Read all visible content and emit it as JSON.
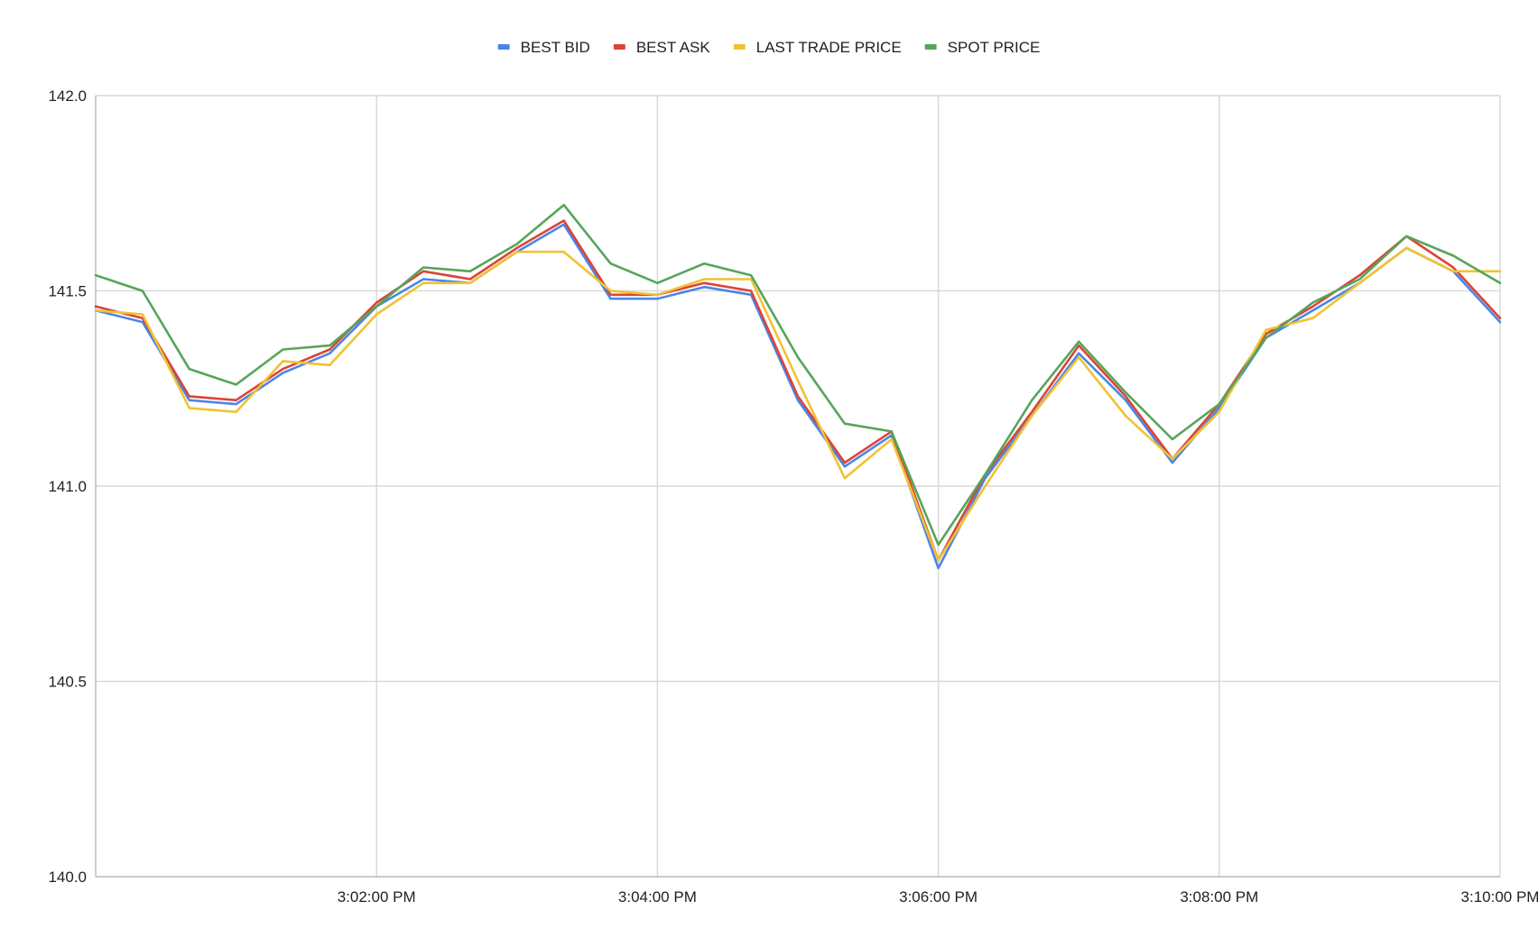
{
  "chart_data": {
    "type": "line",
    "title": "",
    "xlabel": "",
    "ylabel": "",
    "ylim": [
      140.0,
      142.0
    ],
    "yticks": [
      "140.0",
      "140.5",
      "141.0",
      "141.5",
      "142.0"
    ],
    "xlim": [
      "3:00:00 PM",
      "3:10:00 PM"
    ],
    "xticks": [
      "3:02:00 PM",
      "3:04:00 PM",
      "3:06:00 PM",
      "3:08:00 PM",
      "3:10:00 PM"
    ],
    "grid": true,
    "legend_position": "top",
    "x": [
      "3:00:00 PM",
      "3:00:20 PM",
      "3:00:40 PM",
      "3:01:00 PM",
      "3:01:20 PM",
      "3:01:40 PM",
      "3:02:00 PM",
      "3:02:20 PM",
      "3:02:40 PM",
      "3:03:00 PM",
      "3:03:20 PM",
      "3:03:40 PM",
      "3:04:00 PM",
      "3:04:20 PM",
      "3:04:40 PM",
      "3:05:00 PM",
      "3:05:20 PM",
      "3:05:40 PM",
      "3:06:00 PM",
      "3:06:20 PM",
      "3:06:40 PM",
      "3:07:00 PM",
      "3:07:20 PM",
      "3:07:40 PM",
      "3:08:00 PM",
      "3:08:20 PM",
      "3:08:40 PM",
      "3:09:00 PM",
      "3:09:20 PM",
      "3:09:40 PM",
      "3:10:00 PM"
    ],
    "series": [
      {
        "name": "BEST BID",
        "color": "#4a86e8",
        "values": [
          141.45,
          141.42,
          141.22,
          141.21,
          141.29,
          141.34,
          141.46,
          141.53,
          141.52,
          141.6,
          141.67,
          141.48,
          141.48,
          141.51,
          141.49,
          141.22,
          141.05,
          141.13,
          140.79,
          141.02,
          141.18,
          141.34,
          141.22,
          141.06,
          141.2,
          141.38,
          141.45,
          141.52,
          141.61,
          141.55,
          141.42
        ]
      },
      {
        "name": "BEST ASK",
        "color": "#db4437",
        "values": [
          141.46,
          141.43,
          141.23,
          141.22,
          141.3,
          141.35,
          141.47,
          141.55,
          141.53,
          141.61,
          141.68,
          141.49,
          141.49,
          141.52,
          141.5,
          141.23,
          141.06,
          141.14,
          140.81,
          141.03,
          141.19,
          141.36,
          141.23,
          141.07,
          141.21,
          141.39,
          141.46,
          141.54,
          141.64,
          141.56,
          141.43
        ]
      },
      {
        "name": "LAST TRADE PRICE",
        "color": "#f1c232",
        "values": [
          141.45,
          141.44,
          141.2,
          141.19,
          141.32,
          141.31,
          141.44,
          141.52,
          141.52,
          141.6,
          141.6,
          141.5,
          141.49,
          141.53,
          141.53,
          141.27,
          141.02,
          141.12,
          140.81,
          141.0,
          141.18,
          141.33,
          141.18,
          141.07,
          141.19,
          141.4,
          141.43,
          141.52,
          141.61,
          141.55,
          141.55
        ]
      },
      {
        "name": "SPOT PRICE",
        "color": "#57a55a",
        "values": [
          141.54,
          141.5,
          141.3,
          141.26,
          141.35,
          141.36,
          141.46,
          141.56,
          141.55,
          141.62,
          141.72,
          141.57,
          141.52,
          141.57,
          141.54,
          141.33,
          141.16,
          141.14,
          140.85,
          141.03,
          141.22,
          141.37,
          141.24,
          141.12,
          141.21,
          141.38,
          141.47,
          141.53,
          141.64,
          141.59,
          141.52
        ]
      }
    ]
  }
}
